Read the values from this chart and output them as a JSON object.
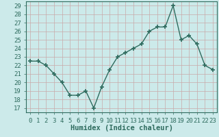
{
  "x": [
    0,
    1,
    2,
    3,
    4,
    5,
    6,
    7,
    8,
    9,
    10,
    11,
    12,
    13,
    14,
    15,
    16,
    17,
    18,
    19,
    20,
    21,
    22,
    23
  ],
  "y": [
    22.5,
    22.5,
    22,
    21,
    20,
    18.5,
    18.5,
    19,
    17,
    19.5,
    21.5,
    23,
    23.5,
    24,
    24.5,
    26,
    26.5,
    26.5,
    29,
    25,
    25.5,
    24.5,
    22,
    21.5
  ],
  "line_color": "#2e6b5e",
  "marker": "+",
  "marker_size": 4,
  "marker_lw": 1.2,
  "bg_color": "#cceaea",
  "grid_color": "#c8a8a8",
  "xlabel": "Humidex (Indice chaleur)",
  "xlim": [
    -0.5,
    23.5
  ],
  "ylim": [
    16.5,
    29.5
  ],
  "yticks": [
    17,
    18,
    19,
    20,
    21,
    22,
    23,
    24,
    25,
    26,
    27,
    28,
    29
  ],
  "xticks": [
    0,
    1,
    2,
    3,
    4,
    5,
    6,
    7,
    8,
    9,
    10,
    11,
    12,
    13,
    14,
    15,
    16,
    17,
    18,
    19,
    20,
    21,
    22,
    23
  ],
  "xlabel_fontsize": 7.5,
  "tick_fontsize": 6.5,
  "line_width": 1.0,
  "spine_color": "#2e6b5e"
}
